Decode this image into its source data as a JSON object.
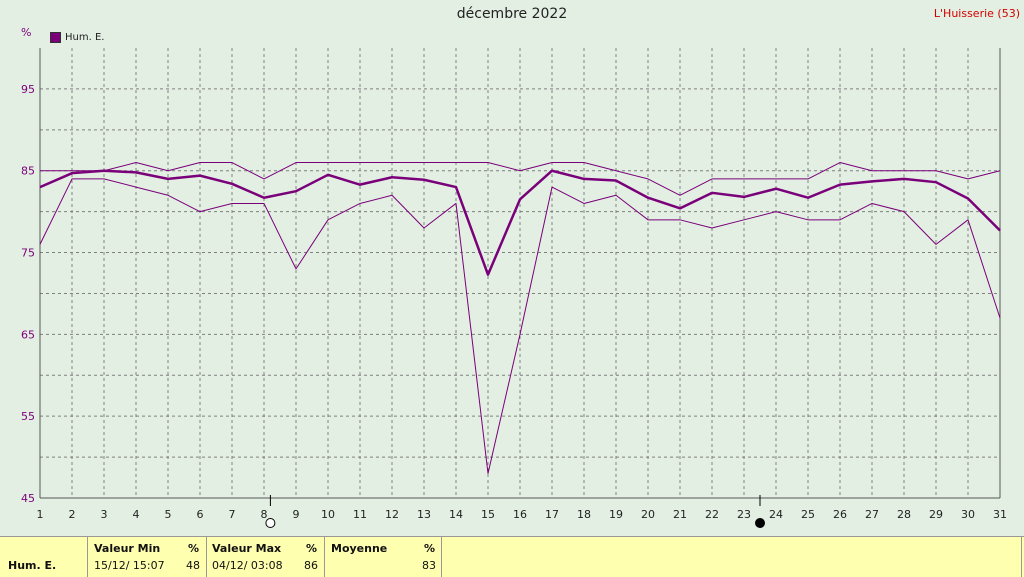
{
  "header": {
    "title": "décembre 2022",
    "station": "L'Huisserie (53)",
    "unit": "%"
  },
  "chart_data": {
    "type": "line",
    "title": "décembre 2022",
    "xlabel": "",
    "ylabel": "%",
    "x": [
      1,
      2,
      3,
      4,
      5,
      6,
      7,
      8,
      9,
      10,
      11,
      12,
      13,
      14,
      15,
      16,
      17,
      18,
      19,
      20,
      21,
      22,
      23,
      24,
      25,
      26,
      27,
      28,
      29,
      30,
      31
    ],
    "xlim": [
      1,
      31
    ],
    "ylim": [
      45,
      100
    ],
    "yticks": [
      45,
      55,
      65,
      75,
      85,
      95
    ],
    "grid": true,
    "legend": "top-left",
    "series": [
      {
        "name": "Hum. E.",
        "role": "mean",
        "color": "#7A007A",
        "values": [
          83,
          84.7,
          85,
          84.8,
          84,
          84.4,
          83.4,
          81.7,
          82.5,
          84.5,
          83.3,
          84.2,
          83.9,
          83,
          72.3,
          81.5,
          85,
          84,
          83.8,
          81.7,
          80.4,
          82.3,
          81.8,
          82.8,
          81.7,
          83.3,
          83.7,
          84,
          83.6,
          81.6,
          77.7
        ]
      },
      {
        "role": "max",
        "color": "#7A007A",
        "values": [
          85,
          85,
          85,
          86,
          85,
          86,
          86,
          84,
          86,
          86,
          86,
          86,
          86,
          86,
          86,
          85,
          86,
          86,
          85,
          84,
          82,
          84,
          84,
          84,
          84,
          86,
          85,
          85,
          85,
          84,
          85
        ]
      },
      {
        "role": "min",
        "color": "#7A007A",
        "values": [
          76,
          84,
          84,
          83,
          82,
          80,
          81,
          81,
          73,
          79,
          81,
          82,
          78,
          81,
          48,
          65,
          83,
          81,
          82,
          79,
          79,
          78,
          79,
          80,
          79,
          79,
          81,
          80,
          76,
          79,
          67
        ]
      }
    ],
    "markers": [
      {
        "x": 8.2,
        "symbol": "full-moon"
      },
      {
        "x": 23.5,
        "symbol": "new-moon"
      }
    ]
  },
  "footer": {
    "label": "Hum. E.",
    "min_header": "Valeur Min",
    "min_unit": "%",
    "min_date": "15/12/  15:07",
    "min_value": "48",
    "max_header": "Valeur Max",
    "max_unit": "%",
    "max_date": "04/12/  03:08",
    "max_value": "86",
    "avg_header": "Moyenne",
    "avg_unit": "%",
    "avg_value": "83"
  }
}
